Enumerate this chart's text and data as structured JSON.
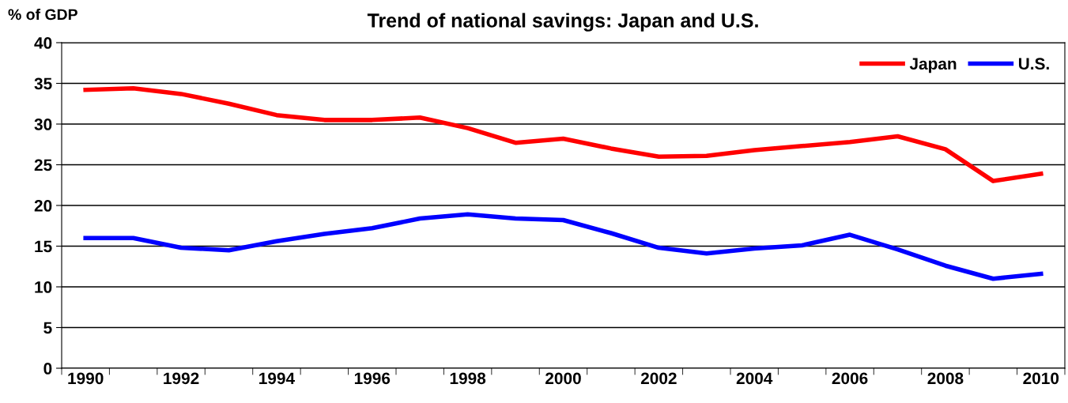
{
  "chart_data": {
    "type": "line",
    "title": "Trend of national savings: Japan and U.S.",
    "ylabel": "% of GDP",
    "categories": [
      "1990",
      null,
      "1992",
      null,
      "1994",
      null,
      "1996",
      null,
      "1998",
      null,
      "2000",
      null,
      "2002",
      null,
      "2004",
      null,
      "2006",
      null,
      "2008",
      null,
      "2010"
    ],
    "series": [
      {
        "name": "Japan",
        "color": "#ff0000",
        "values": [
          34.2,
          34.4,
          33.7,
          32.5,
          31.1,
          30.5,
          30.5,
          30.8,
          29.5,
          27.7,
          28.2,
          27.0,
          26.0,
          26.1,
          26.8,
          27.3,
          27.8,
          28.5,
          26.9,
          23.0,
          23.9
        ]
      },
      {
        "name": "U.S.",
        "color": "#0000ff",
        "values": [
          16.0,
          16.0,
          14.8,
          14.5,
          15.6,
          16.5,
          17.2,
          18.4,
          18.9,
          18.4,
          18.2,
          16.6,
          14.8,
          14.1,
          14.7,
          15.1,
          16.4,
          14.6,
          12.6,
          11.0,
          11.6
        ]
      }
    ],
    "ylim": [
      0,
      40
    ],
    "yticks": [
      0,
      5,
      10,
      15,
      20,
      25,
      30,
      35,
      40
    ],
    "grid": "y",
    "legend": "top right",
    "marker": "none",
    "line_style": "solid"
  }
}
